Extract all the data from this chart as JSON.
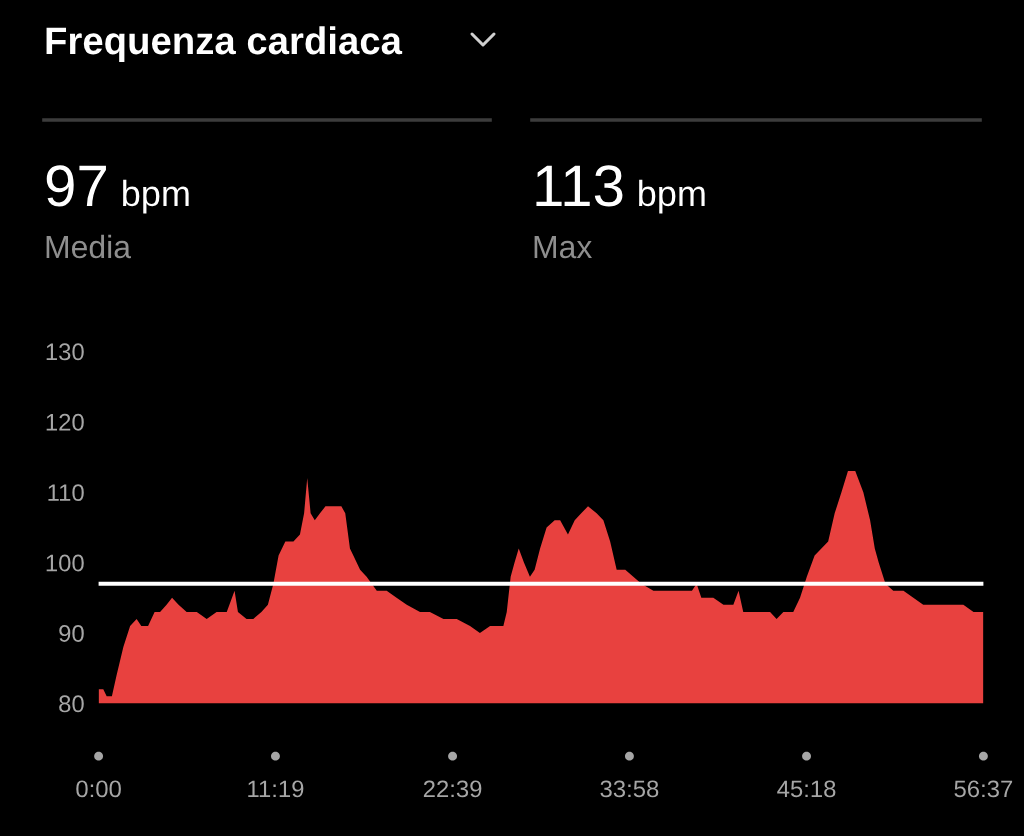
{
  "chart_data": {
    "type": "area",
    "title": "Frequenza cardiaca",
    "annotations": [
      "97 bpm",
      "Media",
      "113 bpm",
      "Max"
    ],
    "x": [
      0,
      18,
      31,
      51,
      69,
      95,
      121,
      146,
      164,
      190,
      215,
      236,
      261,
      282,
      307,
      338,
      377,
      415,
      453,
      492,
      522,
      535,
      568,
      594,
      625,
      650,
      671,
      691,
      717,
      748,
      773,
      789,
      801,
      814,
      830,
      850,
      871,
      901,
      932,
      947,
      965,
      978,
      1004,
      1029,
      1068,
      1106,
      1144,
      1183,
      1234,
      1272,
      1324,
      1375,
      1426,
      1464,
      1503,
      1554,
      1567,
      1582,
      1597,
      1613,
      1633,
      1656,
      1674,
      1695,
      1720,
      1751,
      1772,
      1802,
      1828,
      1853,
      1879,
      1912,
      1938,
      1964,
      1989,
      2022,
      2053,
      2084,
      2130,
      2181,
      2232,
      2278,
      2296,
      2314,
      2360,
      2399,
      2437,
      2457,
      2475,
      2527,
      2578,
      2603,
      2629,
      2667,
      2693,
      2719,
      2749,
      2775,
      2801,
      2826,
      2852,
      2877,
      2905,
      2936,
      2962,
      2980,
      2995,
      3021,
      3051,
      3090,
      3128,
      3166,
      3205,
      3243,
      3282,
      3320,
      3359,
      3397
    ],
    "values": [
      82,
      82,
      81,
      81,
      84,
      88,
      91,
      92,
      91,
      91,
      93,
      93,
      94,
      95,
      94,
      93,
      93,
      92,
      93,
      93,
      96,
      93,
      92,
      92,
      93,
      94,
      97,
      101,
      103,
      103,
      104,
      107,
      112,
      107,
      106,
      107,
      108,
      108,
      108,
      107,
      102,
      101,
      99,
      98,
      96,
      96,
      95,
      94,
      93,
      93,
      92,
      92,
      91,
      90,
      91,
      91,
      93,
      98,
      100,
      102,
      100,
      98,
      99,
      102,
      105,
      106,
      106,
      104,
      106,
      107,
      108,
      107,
      106,
      103,
      99,
      99,
      98,
      97,
      96,
      96,
      96,
      96,
      97,
      95,
      95,
      94,
      94,
      96,
      93,
      93,
      93,
      92,
      93,
      93,
      95,
      98,
      101,
      102,
      103,
      107,
      110,
      113,
      113,
      110,
      106,
      102,
      100,
      97,
      96,
      96,
      95,
      94,
      94,
      94,
      94,
      94,
      93,
      93
    ],
    "color": "#e8413f",
    "xlim": [
      0,
      3397
    ],
    "xticks": [
      {
        "value": 0,
        "label": "0:00"
      },
      {
        "value": 679,
        "label": "11:19"
      },
      {
        "value": 1359,
        "label": "22:39"
      },
      {
        "value": 2038,
        "label": "33:58"
      },
      {
        "value": 2718,
        "label": "45:18"
      },
      {
        "value": 3397,
        "label": "56:37"
      }
    ],
    "ylim": [
      80,
      130
    ],
    "yticks": [
      80,
      90,
      100,
      110,
      120,
      130
    ],
    "ref_lines": [
      {
        "axis": "y",
        "value": 97,
        "color": "#ffffff"
      }
    ]
  }
}
